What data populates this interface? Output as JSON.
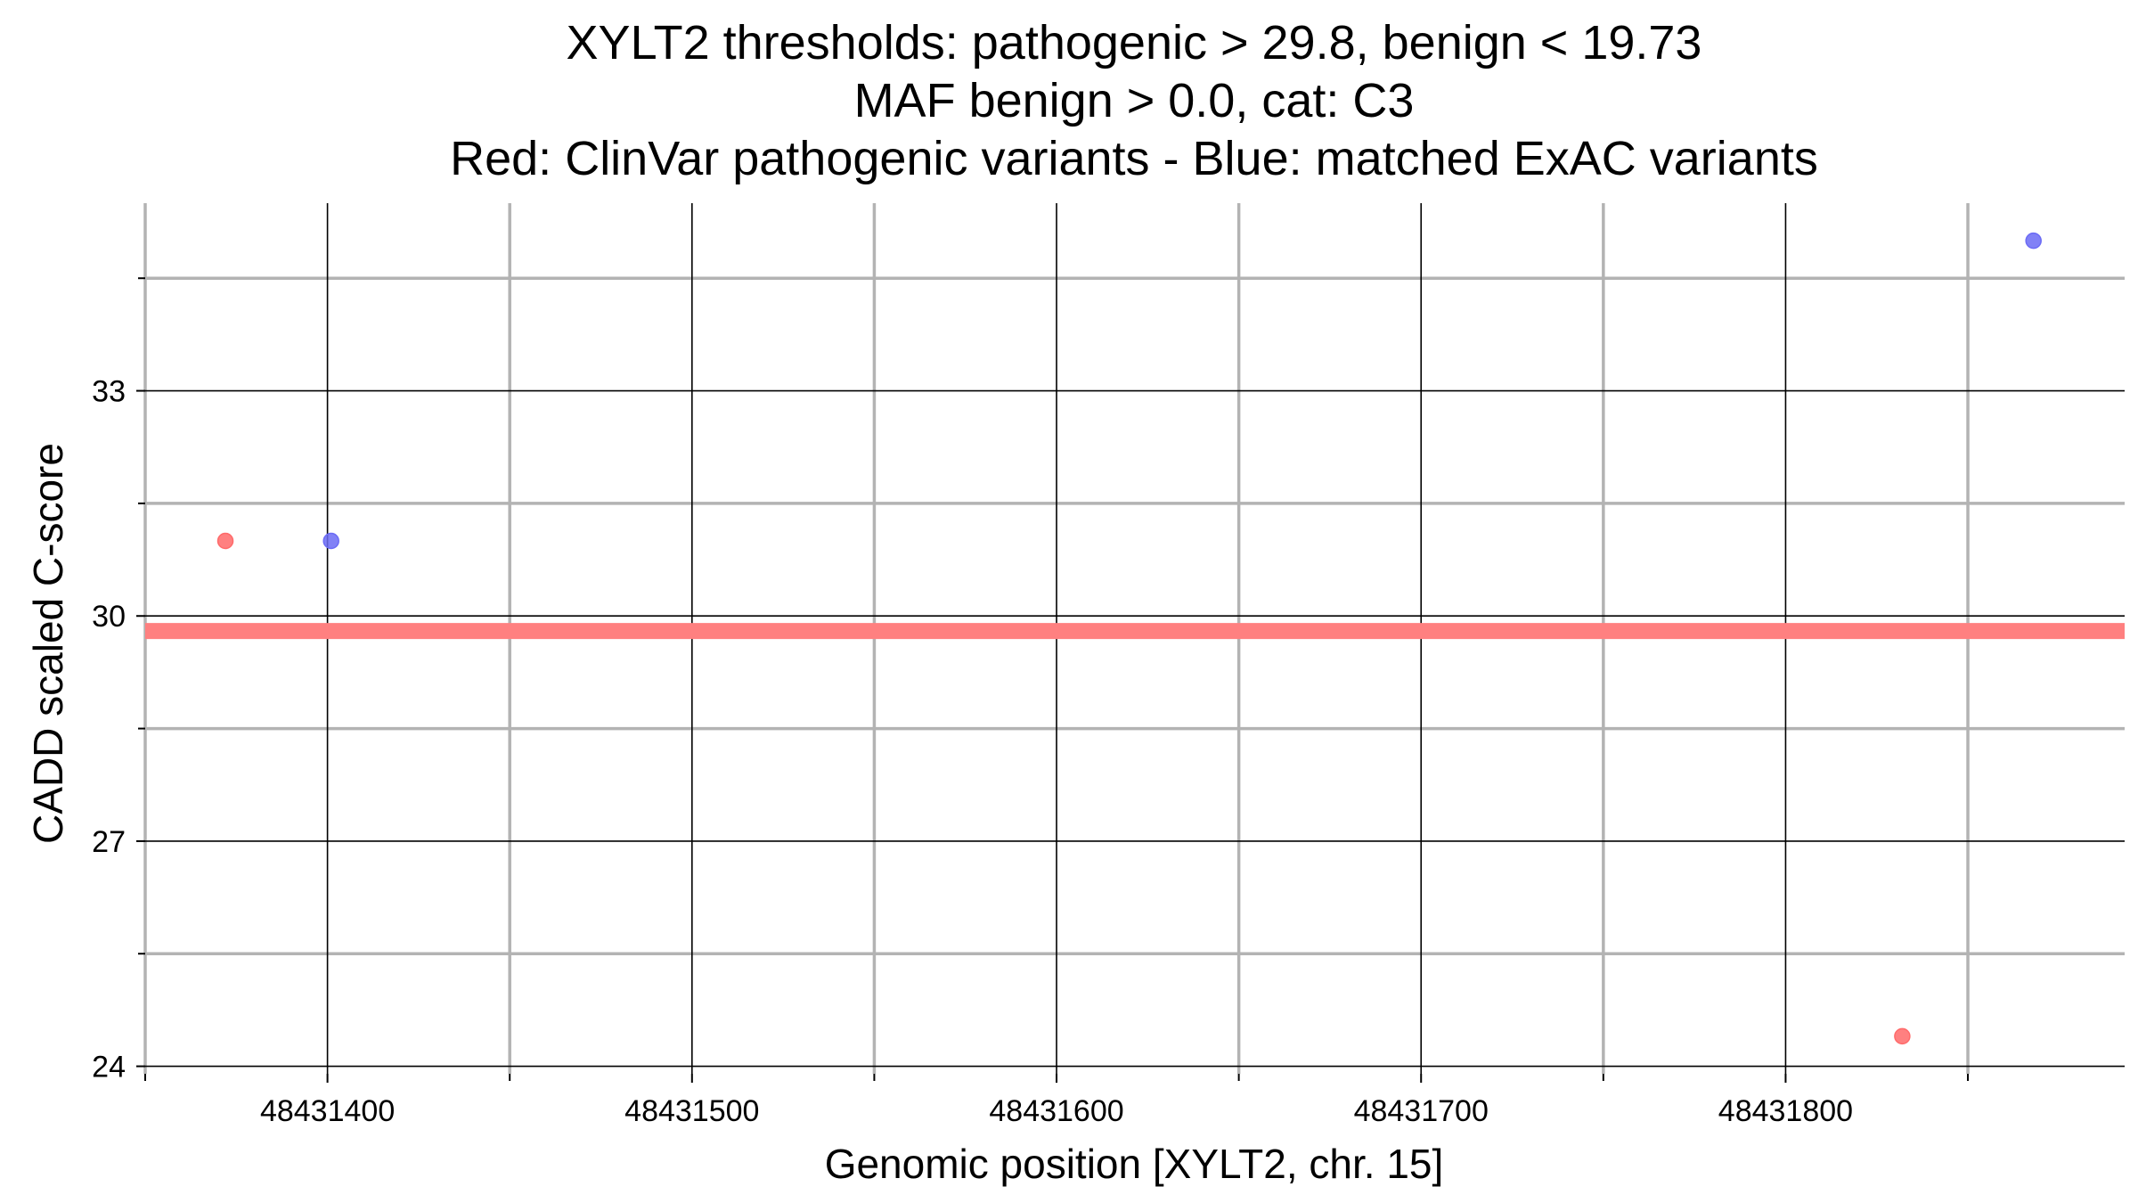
{
  "chart_data": {
    "type": "scatter",
    "title_lines": [
      "XYLT2 thresholds: pathogenic > 29.8, benign < 19.73",
      "MAF benign > 0.0, cat: C3",
      "Red: ClinVar pathogenic variants - Blue: matched ExAC variants"
    ],
    "xlabel": "Genomic position [XYLT2, chr. 15]",
    "ylabel": "CADD scaled C-score",
    "xlim": [
      48431350,
      48431893
    ],
    "ylim": [
      23.9,
      35.5
    ],
    "x_ticks": [
      48431400,
      48431500,
      48431600,
      48431700,
      48431800
    ],
    "x_minor_ticks": [
      48431350,
      48431450,
      48431550,
      48431650,
      48431750,
      48431850
    ],
    "y_ticks": [
      24,
      27,
      30,
      33
    ],
    "y_minor_ticks": [
      25.5,
      28.5,
      31.5,
      34.5
    ],
    "threshold": {
      "y": 29.8,
      "color": "#ff8080"
    },
    "grid": true,
    "series": [
      {
        "color": "#ff6a6a",
        "points": [
          {
            "x": 48431372,
            "y": 31.0
          },
          {
            "x": 48431832,
            "y": 24.4
          }
        ]
      },
      {
        "color": "#6b6bf5",
        "points": [
          {
            "x": 48431401,
            "y": 31.0
          },
          {
            "x": 48431868,
            "y": 35.0
          }
        ]
      }
    ]
  }
}
